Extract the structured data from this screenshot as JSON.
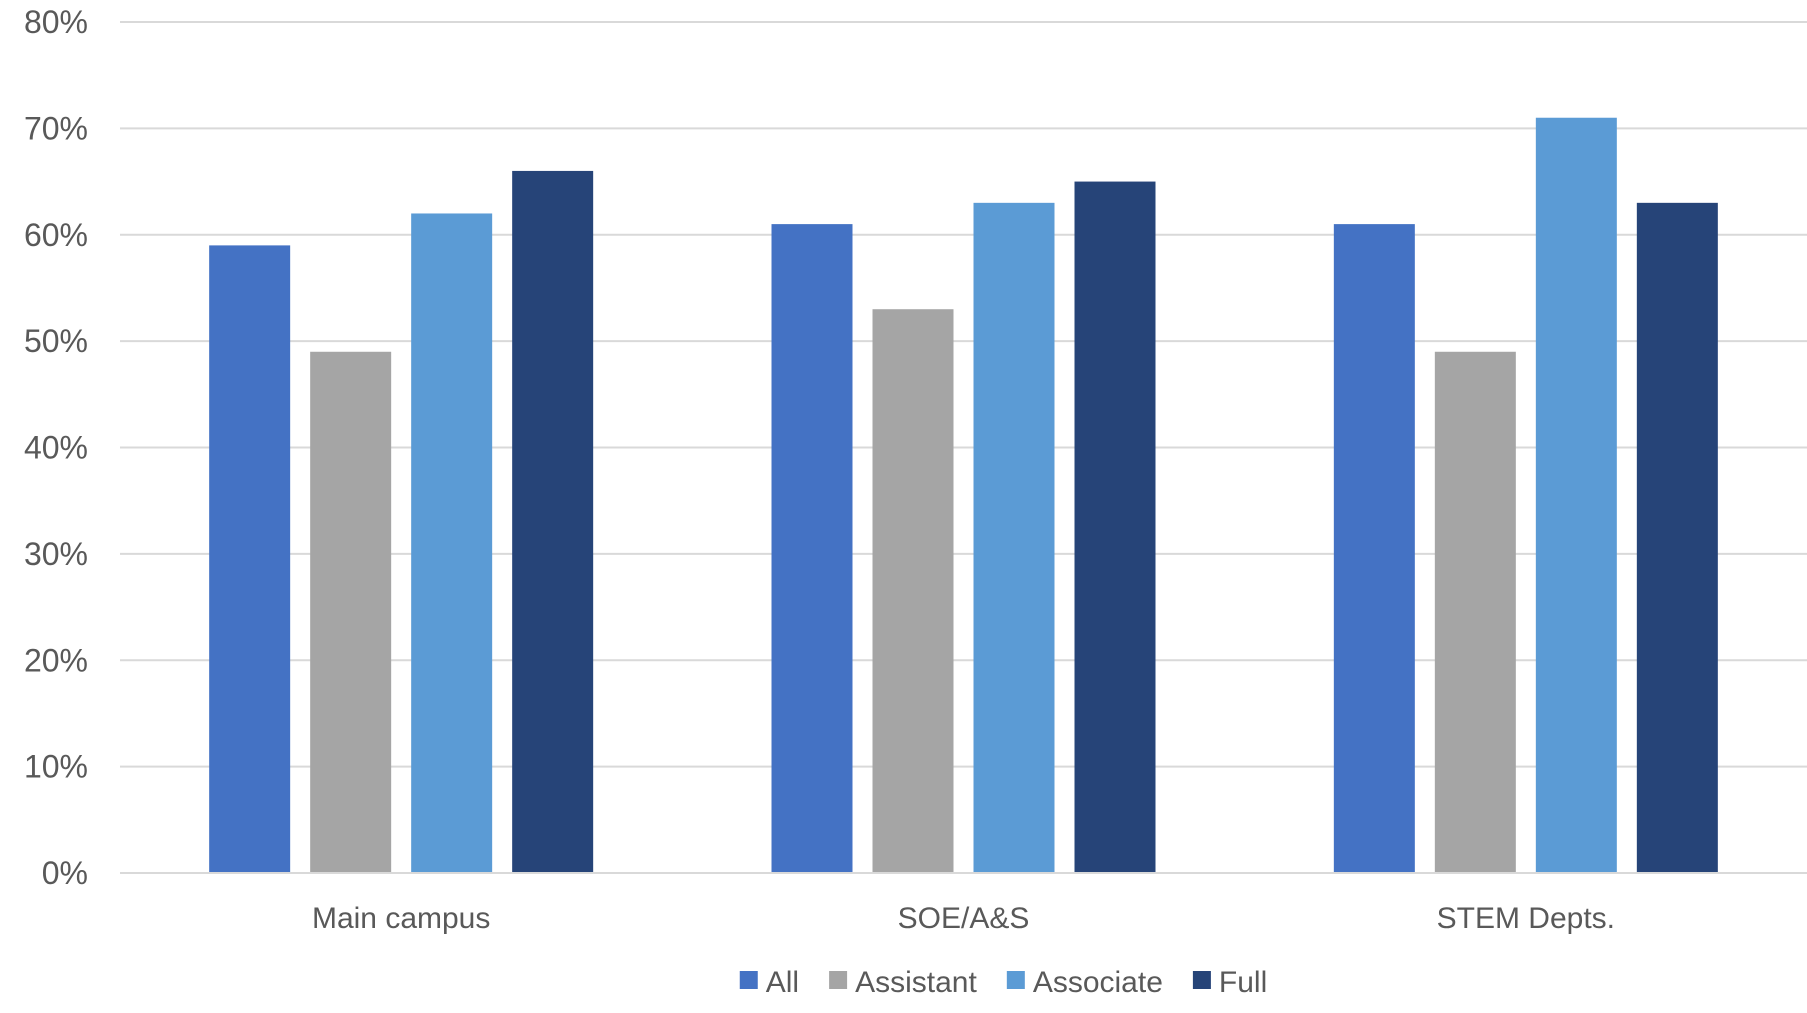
{
  "chart_data": {
    "type": "bar",
    "title": "",
    "xlabel": "",
    "ylabel": "",
    "ylim": [
      0,
      80
    ],
    "y_ticks": [
      "0%",
      "10%",
      "20%",
      "30%",
      "40%",
      "50%",
      "60%",
      "70%",
      "80%"
    ],
    "y_tick_values": [
      0,
      10,
      20,
      30,
      40,
      50,
      60,
      70,
      80
    ],
    "y_unit": "%",
    "grid": true,
    "legend_position": "bottom",
    "categories": [
      "Main campus",
      "SOE/A&S",
      "STEM Depts."
    ],
    "series": [
      {
        "name": "All",
        "color": "#4472c4",
        "values": [
          59,
          61,
          61
        ]
      },
      {
        "name": "Assistant",
        "color": "#a5a5a5",
        "values": [
          49,
          53,
          49
        ]
      },
      {
        "name": "Associate",
        "color": "#5b9bd5",
        "values": [
          62,
          63,
          71
        ]
      },
      {
        "name": "Full",
        "color": "#264478",
        "values": [
          66,
          65,
          63
        ]
      }
    ]
  }
}
